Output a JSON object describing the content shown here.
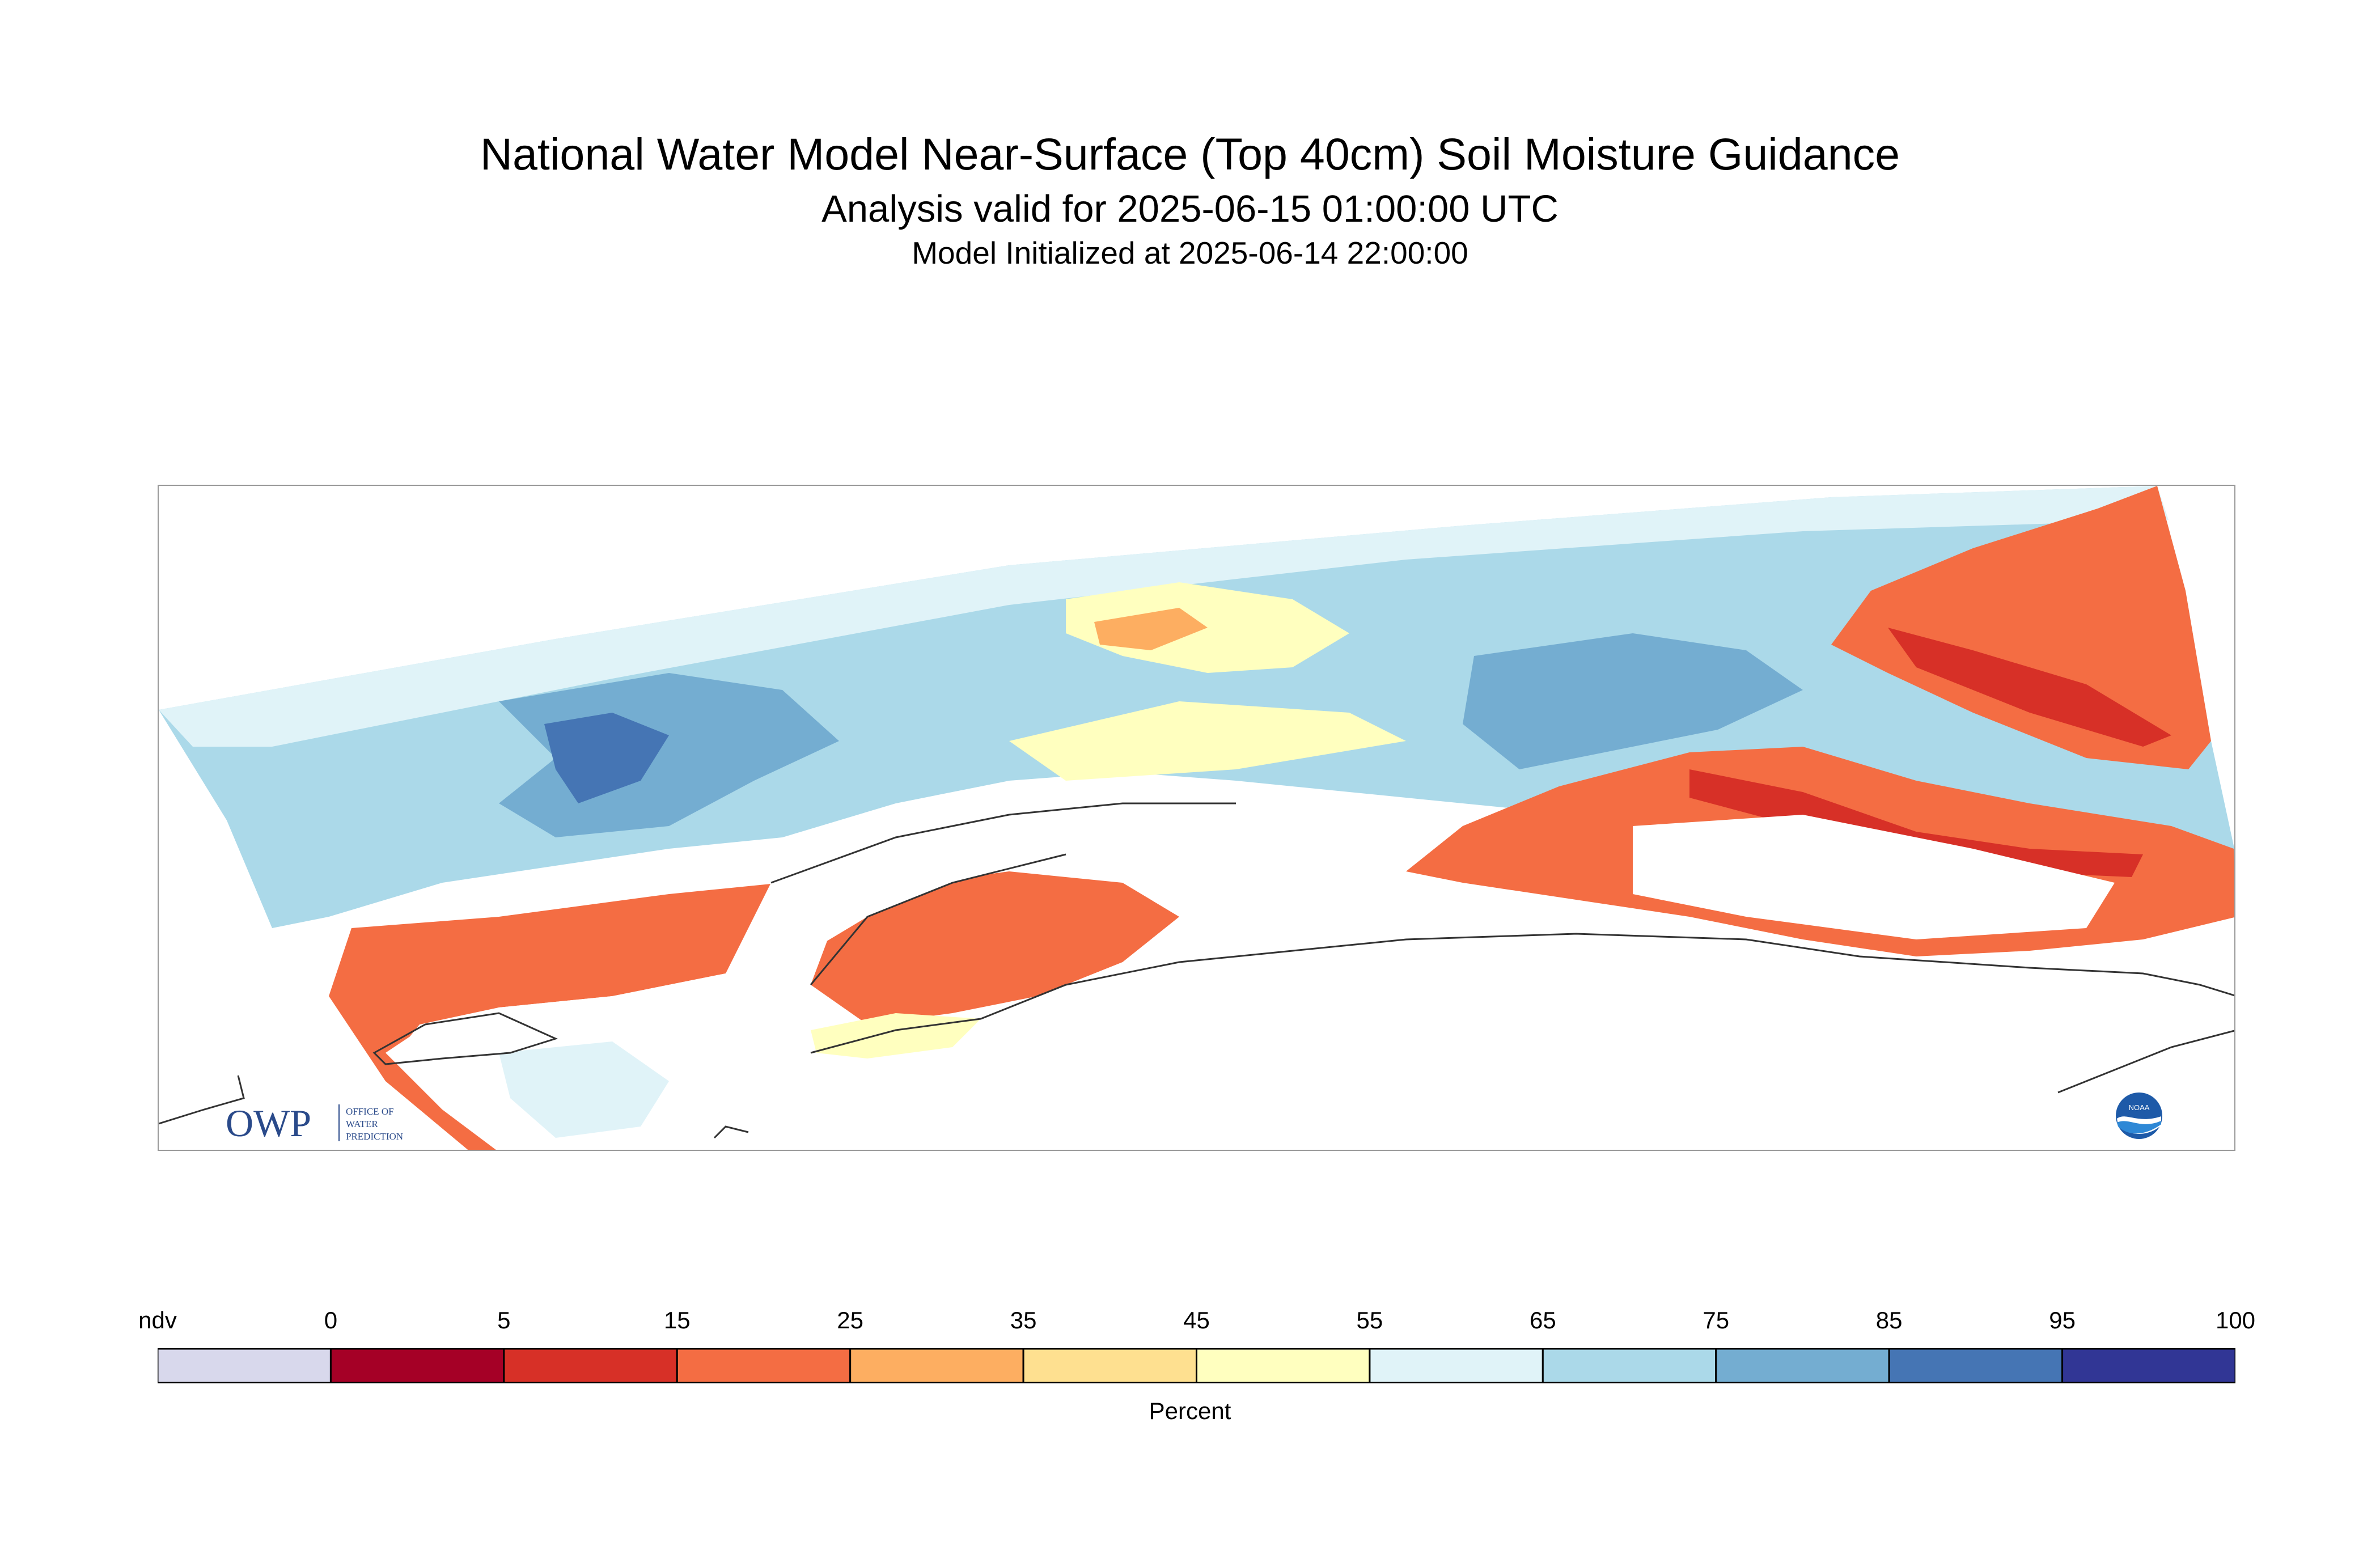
{
  "title": "National Water Model Near-Surface (Top 40cm) Soil Moisture Guidance",
  "subtitle": "Analysis valid for 2025-06-15 01:00:00 UTC",
  "init_line": "Model Initialized at 2025-06-14 22:00:00",
  "map": {
    "region": "Southern Alaska",
    "features": [
      "coastline",
      "soil-moisture-field"
    ]
  },
  "logos": {
    "owp": {
      "mark": "OWP",
      "text": "OFFICE OF WATER PREDICTION"
    },
    "noaa": {
      "text": "NOAA"
    }
  },
  "colorbar": {
    "units": "Percent",
    "tick_labels": [
      "ndv",
      "0",
      "5",
      "15",
      "25",
      "35",
      "45",
      "55",
      "65",
      "75",
      "85",
      "95",
      "100"
    ],
    "bins": [
      {
        "label": "ndv",
        "color": "#d8d8ec"
      },
      {
        "label": "0-5",
        "color": "#a50026"
      },
      {
        "label": "5-15",
        "color": "#d73027"
      },
      {
        "label": "15-25",
        "color": "#f46d43"
      },
      {
        "label": "25-35",
        "color": "#fdae61"
      },
      {
        "label": "35-45",
        "color": "#fee090"
      },
      {
        "label": "45-55",
        "color": "#ffffbf"
      },
      {
        "label": "55-65",
        "color": "#e0f3f8"
      },
      {
        "label": "65-75",
        "color": "#abd9e9"
      },
      {
        "label": "75-85",
        "color": "#74add1"
      },
      {
        "label": "85-95",
        "color": "#4575b4"
      },
      {
        "label": "95-100",
        "color": "#313695"
      }
    ]
  }
}
